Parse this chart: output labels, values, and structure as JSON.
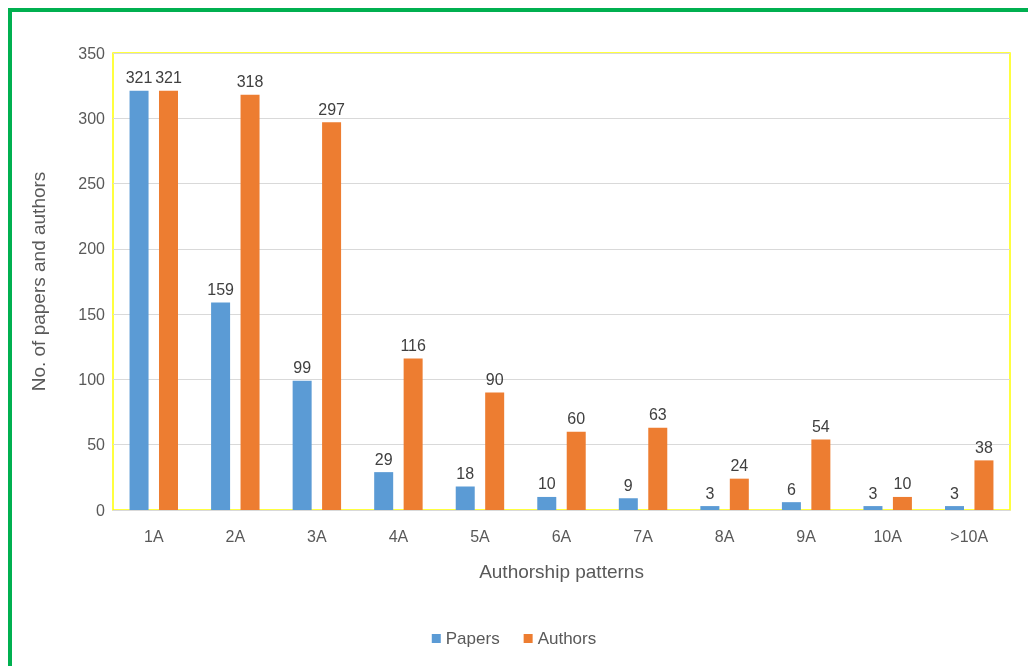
{
  "chart_data": {
    "type": "bar",
    "xlabel": "Authorship patterns",
    "ylabel": "No. of papers and authors",
    "categories": [
      "1A",
      "2A",
      "3A",
      "4A",
      "5A",
      "6A",
      "7A",
      "8A",
      "9A",
      "10A",
      ">10A"
    ],
    "series": [
      {
        "name": "Papers",
        "color": "#5b9bd5",
        "values": [
          321,
          159,
          99,
          29,
          18,
          10,
          9,
          3,
          6,
          3,
          3
        ]
      },
      {
        "name": "Authors",
        "color": "#ed7d31",
        "values": [
          321,
          318,
          297,
          116,
          90,
          60,
          63,
          24,
          54,
          10,
          38
        ]
      }
    ],
    "ylim": [
      0,
      350
    ],
    "yticks": [
      0,
      50,
      100,
      150,
      200,
      250,
      300,
      350
    ],
    "grid": "y",
    "legend": "bottom",
    "data_labels": true
  }
}
